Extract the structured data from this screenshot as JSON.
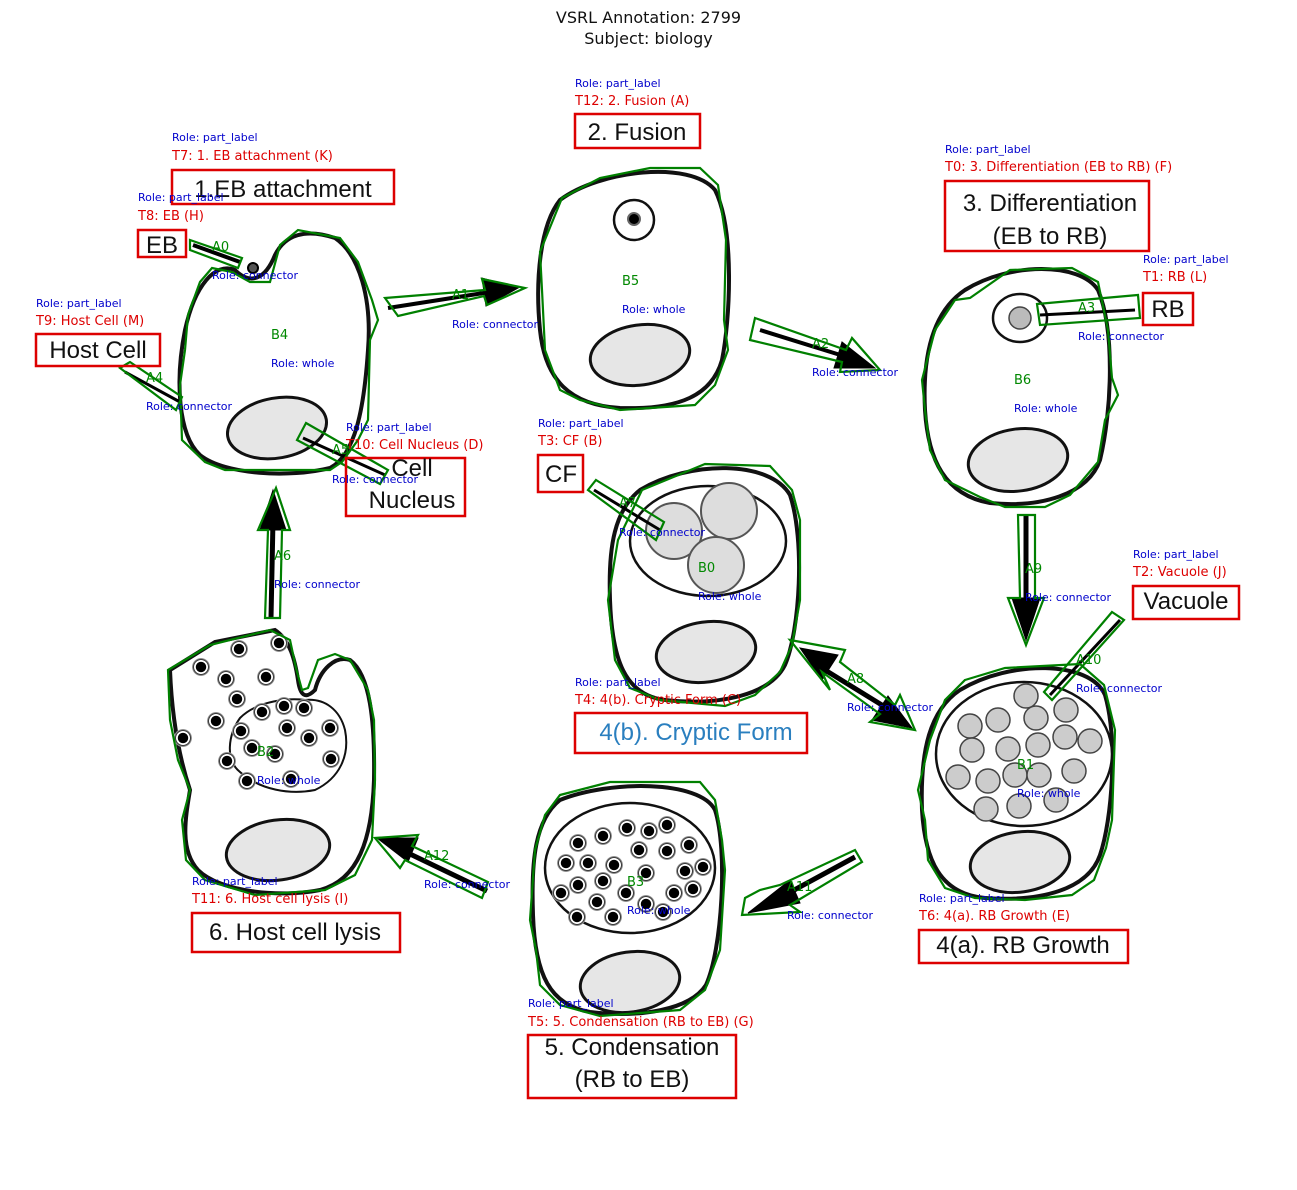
{
  "header": {
    "line1": "VSRL Annotation: 2799",
    "line2": "Subject: biology"
  },
  "colors": {
    "text_label_box": "#dd0000",
    "blob_outline": "#008000",
    "role_text": "#0000cc",
    "region_label": "#008800",
    "cryptic_form_text": "#2a7fbf"
  },
  "text_labels": [
    {
      "id": "T0",
      "tag": "T0: 3. Differentiation (EB to RB) (F)",
      "role": "Role: part_label",
      "lines": [
        "3. Differentiation",
        "(EB to RB)"
      ]
    },
    {
      "id": "T1",
      "tag": "T1: RB (L)",
      "role": "Role: part_label",
      "lines": [
        "RB"
      ]
    },
    {
      "id": "T2",
      "tag": "T2: Vacuole (J)",
      "role": "Role: part_label",
      "lines": [
        "Vacuole"
      ]
    },
    {
      "id": "T3",
      "tag": "T3: CF (B)",
      "role": "Role: part_label",
      "lines": [
        "CF"
      ]
    },
    {
      "id": "T4",
      "tag": "T4: 4(b). Cryptic Form (C)",
      "role": "Role: part_label",
      "lines": [
        "4(b). Cryptic Form"
      ]
    },
    {
      "id": "T5",
      "tag": "T5: 5.  Condensation (RB to EB) (G)",
      "role": "Role: part_label",
      "lines": [
        "5. Condensation",
        "(RB to EB)"
      ]
    },
    {
      "id": "T6",
      "tag": "T6: 4(a). RB Growth (E)",
      "role": "Role: part_label",
      "lines": [
        "4(a). RB Growth"
      ]
    },
    {
      "id": "T7",
      "tag": "T7: 1. EB attachment (K)",
      "role": "Role: part_label",
      "lines": [
        "1.EB attachment"
      ]
    },
    {
      "id": "T8",
      "tag": "T8: EB (H)",
      "role": "Role: part_label",
      "lines": [
        "EB"
      ]
    },
    {
      "id": "T9",
      "tag": "T9: Host Cell (M)",
      "role": "Role: part_label",
      "lines": [
        "Host Cell"
      ]
    },
    {
      "id": "T10",
      "tag": "T10: Cell Nucleus (D)",
      "role": "Role: part_label",
      "lines": [
        "Cell",
        "Nucleus"
      ]
    },
    {
      "id": "T11",
      "tag": "T11: 6. Host cell lysis (I)",
      "role": "Role: part_label",
      "lines": [
        "6. Host cell lysis"
      ]
    },
    {
      "id": "T12",
      "tag": "T12: 2. Fusion (A)",
      "role": "Role: part_label",
      "lines": [
        "2. Fusion"
      ]
    }
  ],
  "blobs": [
    {
      "id": "B0",
      "role": "Role: whole"
    },
    {
      "id": "B1",
      "role": "Role: whole"
    },
    {
      "id": "B2",
      "role": "Role: whole"
    },
    {
      "id": "B3",
      "role": "Role: whole"
    },
    {
      "id": "B4",
      "role": "Role: whole"
    },
    {
      "id": "B5",
      "role": "Role: whole"
    },
    {
      "id": "B6",
      "role": "Role: whole"
    }
  ],
  "arrows": [
    {
      "id": "A0",
      "role": "Role: connector"
    },
    {
      "id": "A1",
      "role": "Role: connector"
    },
    {
      "id": "A2",
      "role": "Role: connector"
    },
    {
      "id": "A3",
      "role": "Role: connector"
    },
    {
      "id": "A4",
      "role": "Role: connector"
    },
    {
      "id": "A5",
      "role": "Role: connector"
    },
    {
      "id": "A6",
      "role": "Role: connector"
    },
    {
      "id": "A7",
      "role": "Role: connector"
    },
    {
      "id": "A8",
      "role": "Role: connector"
    },
    {
      "id": "A9",
      "role": "Role: connector"
    },
    {
      "id": "A10",
      "role": "Role: connector"
    },
    {
      "id": "A11",
      "role": "Role: connector"
    },
    {
      "id": "A12",
      "role": "Role: connector"
    }
  ]
}
